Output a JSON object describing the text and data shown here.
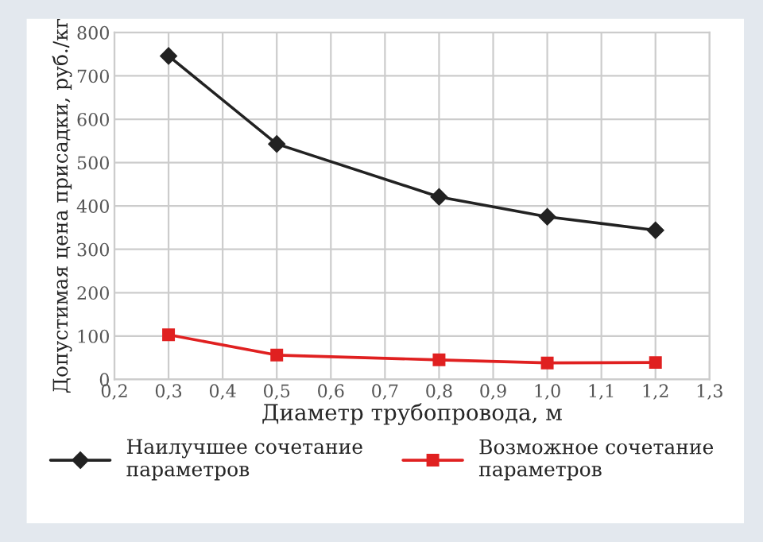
{
  "chart_data": {
    "type": "line",
    "xlabel": "Диаметр трубопровода, м",
    "ylabel": "Допустимая цена присадки, руб./кг",
    "x": [
      0.3,
      0.5,
      0.8,
      1.0,
      1.2
    ],
    "series": [
      {
        "name": "Наилучшее сочетание\nпараметров",
        "color": "#222222",
        "marker": "diamond",
        "values": [
          746,
          543,
          421,
          375,
          344
        ]
      },
      {
        "name": "Возможное сочетание\nпараметров",
        "color": "#e02020",
        "marker": "square",
        "values": [
          103,
          56,
          45,
          38,
          39
        ]
      }
    ],
    "xlim": [
      0.2,
      1.3
    ],
    "xticks": [
      {
        "value": 0.2,
        "label": "0,2"
      },
      {
        "value": 0.3,
        "label": "0,3"
      },
      {
        "value": 0.4,
        "label": "0,4"
      },
      {
        "value": 0.5,
        "label": "0,5"
      },
      {
        "value": 0.6,
        "label": "0,6"
      },
      {
        "value": 0.7,
        "label": "0,7"
      },
      {
        "value": 0.8,
        "label": "0,8"
      },
      {
        "value": 0.9,
        "label": "0,9"
      },
      {
        "value": 1.0,
        "label": "1,0"
      },
      {
        "value": 1.1,
        "label": "1,1"
      },
      {
        "value": 1.2,
        "label": "1,2"
      },
      {
        "value": 1.3,
        "label": "1,3"
      }
    ],
    "ylim": [
      0,
      800
    ],
    "yticks": [
      0,
      100,
      200,
      300,
      400,
      500,
      600,
      700,
      800
    ],
    "grid": true,
    "legend": "bottom",
    "line_style": "solid"
  }
}
